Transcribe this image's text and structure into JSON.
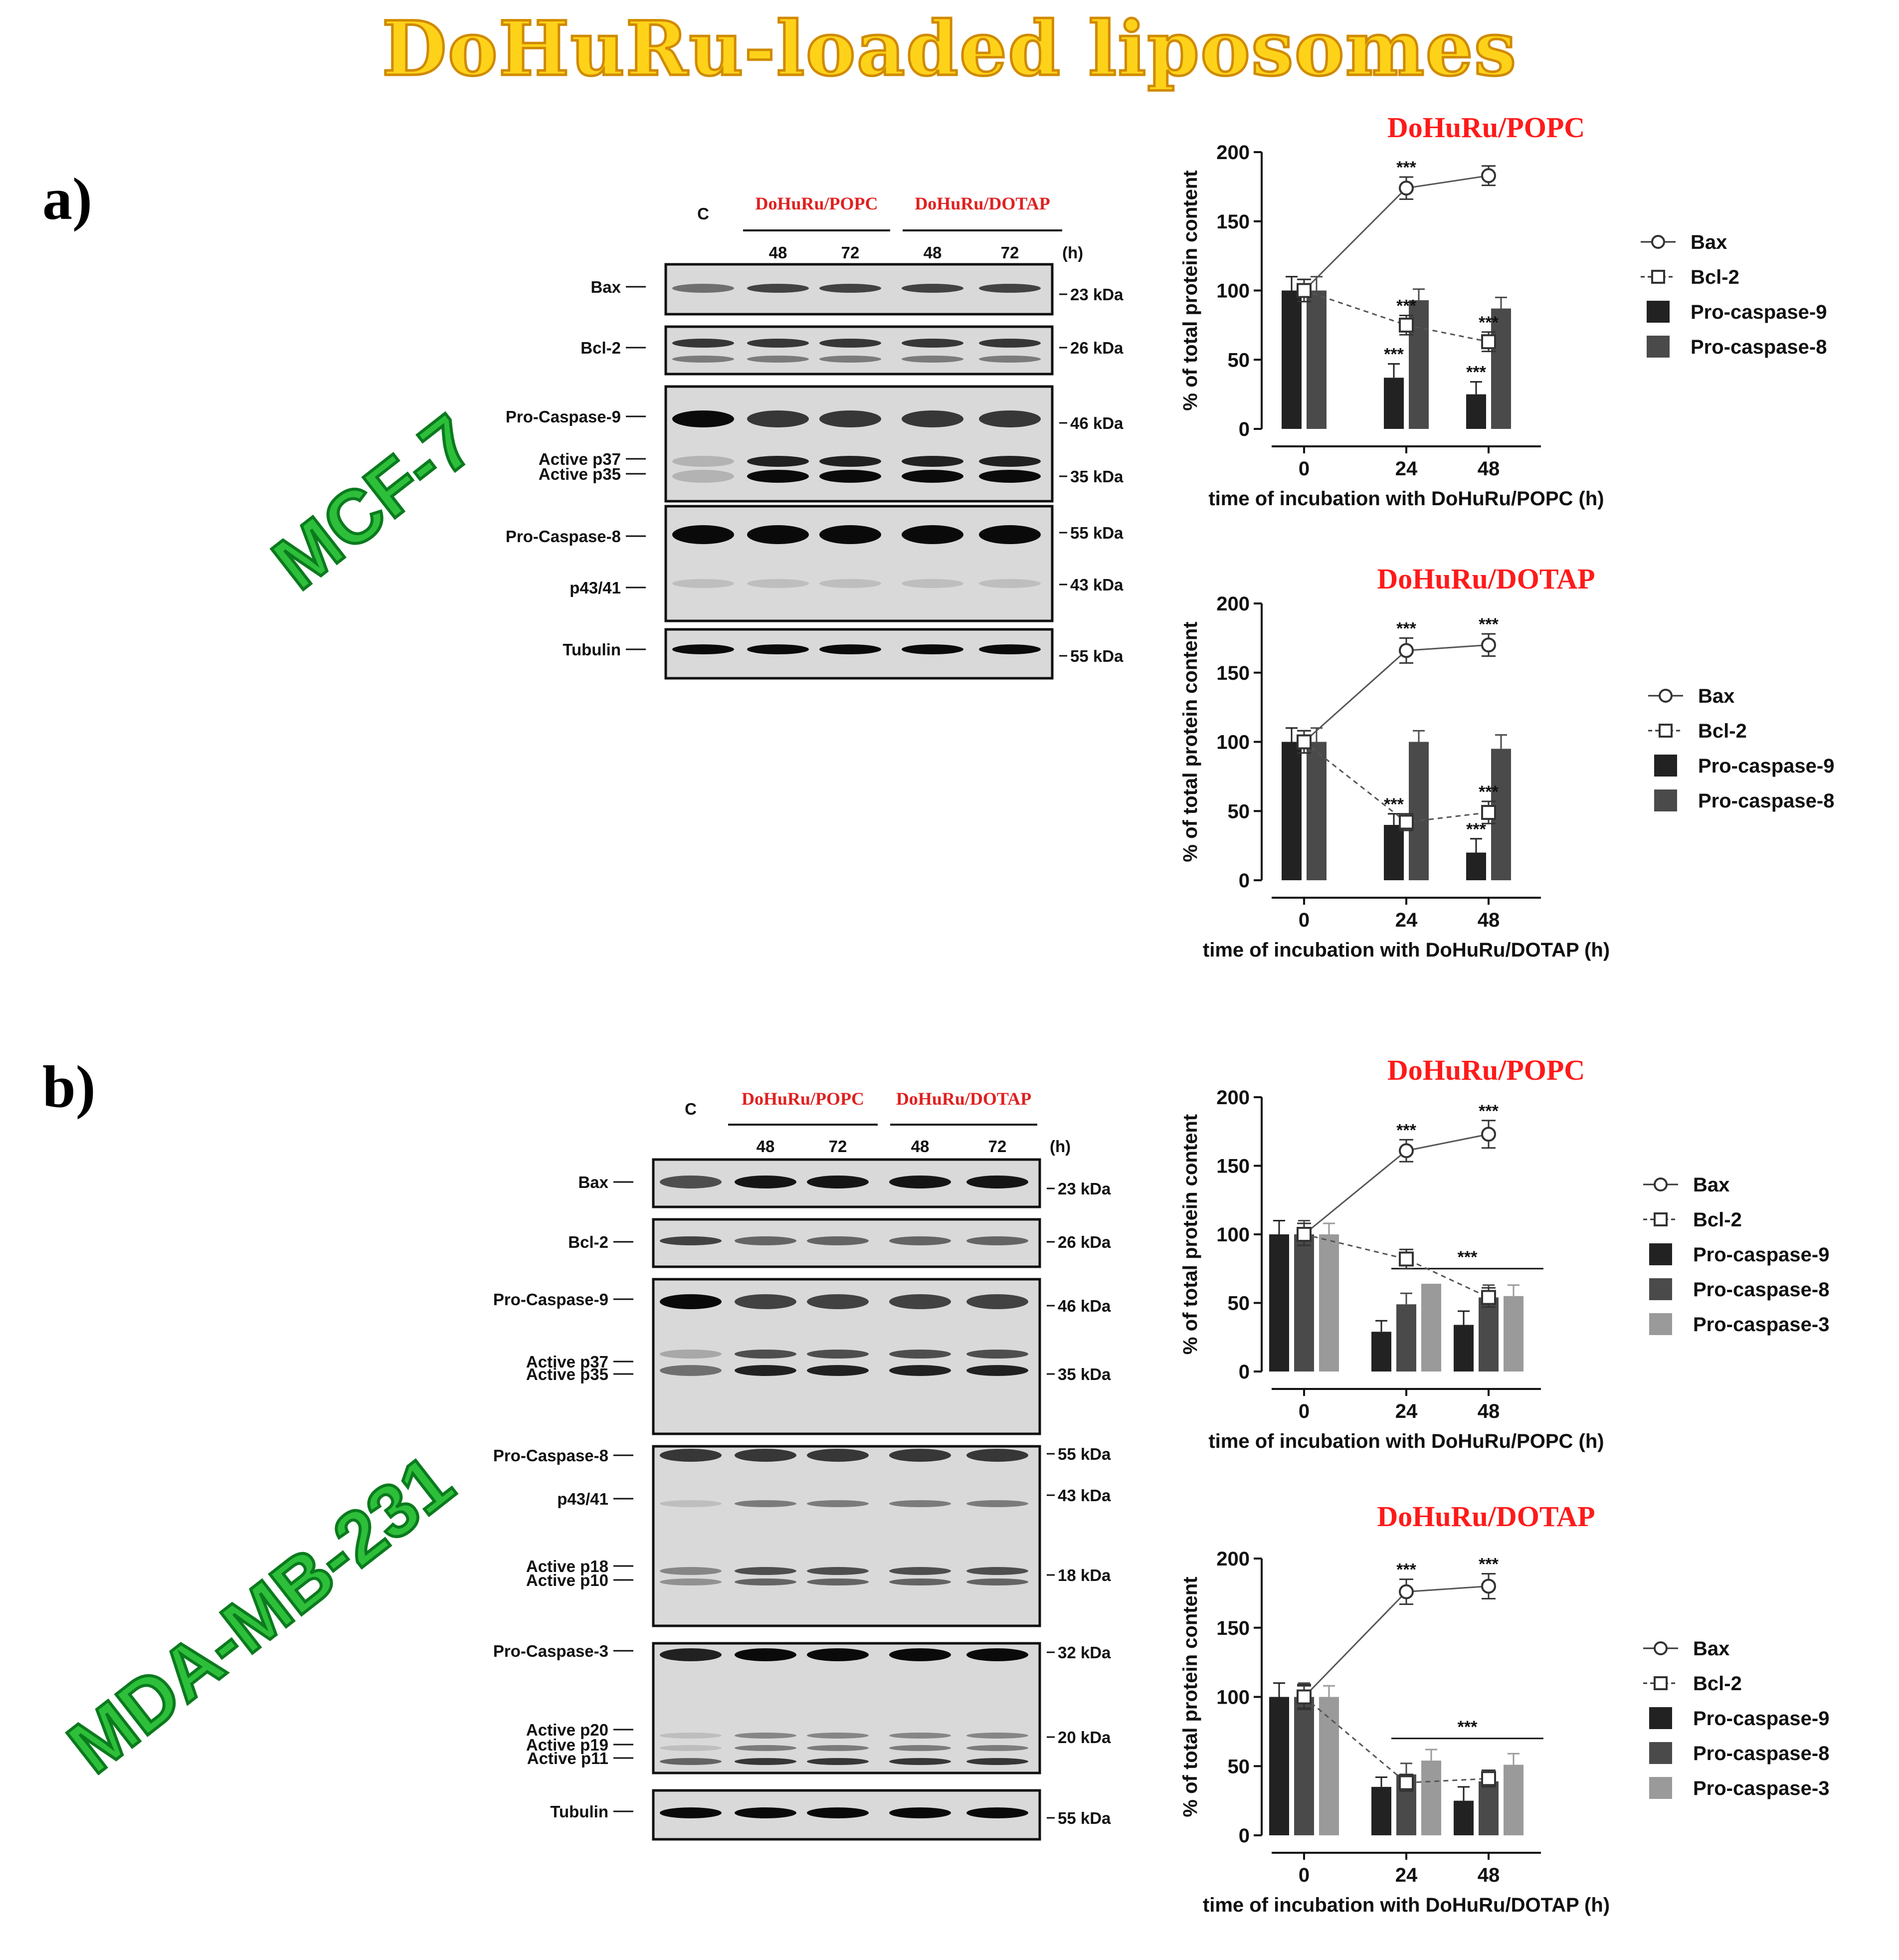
{
  "title": "DoHuRu-loaded liposomes",
  "panels": [
    {
      "label": "a)",
      "cell_line": "MCF-7",
      "blot": {
        "lanes": [
          "C",
          "48",
          "72",
          "48",
          "72"
        ],
        "unit": "(h)",
        "group_labels": [
          "DoHuRu/POPC",
          "DoHuRu/DOTAP"
        ],
        "rows": [
          {
            "labels": [
              "Bax"
            ],
            "kda": [
              "23 kDa"
            ]
          },
          {
            "labels": [
              "Bcl-2"
            ],
            "kda": [
              "26 kDa"
            ]
          },
          {
            "labels": [
              "Pro-Caspase-9",
              "Active  p37",
              "Active  p35"
            ],
            "kda": [
              "46 kDa",
              "35 kDa"
            ]
          },
          {
            "labels": [
              "Pro-Caspase-8",
              "p43/41"
            ],
            "kda": [
              "55 kDa",
              "43 kDa"
            ]
          },
          {
            "labels": [
              "Tubulin"
            ],
            "kda": [
              "55 kDa"
            ]
          }
        ]
      }
    },
    {
      "label": "b)",
      "cell_line": "MDA-MB-231",
      "blot": {
        "lanes": [
          "C",
          "48",
          "72",
          "48",
          "72"
        ],
        "unit": "(h)",
        "group_labels": [
          "DoHuRu/POPC",
          "DoHuRu/DOTAP"
        ],
        "rows": [
          {
            "labels": [
              "Bax"
            ],
            "kda": [
              "23 kDa"
            ]
          },
          {
            "labels": [
              "Bcl-2"
            ],
            "kda": [
              "26 kDa"
            ]
          },
          {
            "labels": [
              "Pro-Caspase-9",
              "Active  p37",
              "Active  p35"
            ],
            "kda": [
              "46 kDa",
              "35 kDa"
            ]
          },
          {
            "labels": [
              "Pro-Caspase-8",
              "p43/41",
              "Active  p18",
              "Active  p10"
            ],
            "kda": [
              "55 kDa",
              "43 kDa",
              "18 kDa"
            ]
          },
          {
            "labels": [
              "Pro-Caspase-3",
              "Active  p20",
              "Active  p19",
              "Active  p11"
            ],
            "kda": [
              "32 kDa",
              "20 kDa"
            ]
          },
          {
            "labels": [
              "Tubulin"
            ],
            "kda": [
              "55 kDa"
            ]
          }
        ]
      }
    }
  ],
  "chart_data": [
    {
      "type": "bar",
      "panel": "a)",
      "title": "DoHuRu/POPC",
      "xlabel": "time of incubation with DoHuRu/POPC (h)",
      "ylabel": "% of total protein content",
      "categories": [
        "0",
        "24",
        "48"
      ],
      "ylim": [
        0,
        200
      ],
      "yticks": [
        0,
        50,
        100,
        150,
        200
      ],
      "bar_series": [
        {
          "name": "Pro-caspase-9",
          "color": "#222222",
          "values": [
            100,
            37,
            25
          ],
          "errors": [
            10,
            10,
            9
          ],
          "stars": [
            "",
            "***",
            "***"
          ]
        },
        {
          "name": "Pro-caspase-8",
          "color": "#4a4a4a",
          "values": [
            100,
            93,
            87
          ],
          "errors": [
            10,
            8,
            8
          ],
          "stars": [
            "",
            "",
            ""
          ]
        }
      ],
      "line_series": [
        {
          "name": "Bax",
          "marker": "circle",
          "dash": false,
          "values": [
            100,
            174,
            183
          ],
          "errors": [
            8,
            8,
            7
          ],
          "stars": [
            "",
            "***",
            ""
          ]
        },
        {
          "name": "Bcl-2",
          "marker": "square",
          "dash": true,
          "values": [
            100,
            75,
            63
          ],
          "errors": [
            8,
            7,
            7
          ],
          "stars": [
            "",
            "***",
            "***"
          ]
        }
      ],
      "bracket_star": "",
      "legend": "right"
    },
    {
      "type": "bar",
      "panel": "a)",
      "title": "DoHuRu/DOTAP",
      "xlabel": "time of incubation with DoHuRu/DOTAP (h)",
      "ylabel": "% of total protein content",
      "categories": [
        "0",
        "24",
        "48"
      ],
      "ylim": [
        0,
        200
      ],
      "yticks": [
        0,
        50,
        100,
        150,
        200
      ],
      "bar_series": [
        {
          "name": "Pro-caspase-9",
          "color": "#222222",
          "values": [
            100,
            40,
            20
          ],
          "errors": [
            10,
            8,
            10
          ],
          "stars": [
            "",
            "***",
            "***"
          ]
        },
        {
          "name": "Pro-caspase-8",
          "color": "#4a4a4a",
          "values": [
            100,
            100,
            95
          ],
          "errors": [
            10,
            8,
            10
          ],
          "stars": [
            "",
            "",
            ""
          ]
        }
      ],
      "line_series": [
        {
          "name": "Bax",
          "marker": "circle",
          "dash": false,
          "values": [
            100,
            166,
            170
          ],
          "errors": [
            8,
            9,
            8
          ],
          "stars": [
            "",
            "***",
            "***"
          ]
        },
        {
          "name": "Bcl-2",
          "marker": "square",
          "dash": true,
          "values": [
            100,
            42,
            49
          ],
          "errors": [
            8,
            6,
            8
          ],
          "stars": [
            "",
            "",
            "***"
          ]
        }
      ],
      "bracket_star": "",
      "legend": "right"
    },
    {
      "type": "bar",
      "panel": "b)",
      "title": "DoHuRu/POPC",
      "xlabel": "time of incubation with DoHuRu/POPC (h)",
      "ylabel": "% of total protein content",
      "categories": [
        "0",
        "24",
        "48"
      ],
      "ylim": [
        0,
        200
      ],
      "yticks": [
        0,
        50,
        100,
        150,
        200
      ],
      "bar_series": [
        {
          "name": "Pro-caspase-9",
          "color": "#222222",
          "values": [
            100,
            29,
            34
          ],
          "errors": [
            10,
            8,
            10
          ],
          "stars": [
            "",
            "",
            ""
          ]
        },
        {
          "name": "Pro-caspase-8",
          "color": "#4a4a4a",
          "values": [
            100,
            49,
            54
          ],
          "errors": [
            10,
            8,
            9
          ],
          "stars": [
            "",
            "",
            ""
          ]
        },
        {
          "name": "Pro-caspase-3",
          "color": "#9a9a9a",
          "values": [
            100,
            64,
            55
          ],
          "errors": [
            8,
            0,
            8
          ],
          "stars": [
            "",
            "",
            ""
          ]
        }
      ],
      "line_series": [
        {
          "name": "Bax",
          "marker": "circle",
          "dash": false,
          "values": [
            100,
            161,
            173
          ],
          "errors": [
            8,
            8,
            10
          ],
          "stars": [
            "",
            "***",
            "***"
          ]
        },
        {
          "name": "Bcl-2",
          "marker": "square",
          "dash": true,
          "values": [
            100,
            82,
            54
          ],
          "errors": [
            8,
            7,
            7
          ],
          "stars": [
            "",
            "",
            ""
          ]
        }
      ],
      "bracket_star": "***",
      "legend": "right"
    },
    {
      "type": "bar",
      "panel": "b)",
      "title": "DoHuRu/DOTAP",
      "xlabel": "time of incubation with DoHuRu/DOTAP (h)",
      "ylabel": "% of total protein content",
      "categories": [
        "0",
        "24",
        "48"
      ],
      "ylim": [
        0,
        200
      ],
      "yticks": [
        0,
        50,
        100,
        150,
        200
      ],
      "bar_series": [
        {
          "name": "Pro-caspase-9",
          "color": "#222222",
          "values": [
            100,
            35,
            25
          ],
          "errors": [
            10,
            7,
            10
          ],
          "stars": [
            "",
            "",
            ""
          ]
        },
        {
          "name": "Pro-caspase-8",
          "color": "#4a4a4a",
          "values": [
            100,
            44,
            39
          ],
          "errors": [
            10,
            8,
            8
          ],
          "stars": [
            "",
            "",
            ""
          ]
        },
        {
          "name": "Pro-caspase-3",
          "color": "#9a9a9a",
          "values": [
            100,
            54,
            51
          ],
          "errors": [
            8,
            8,
            8
          ],
          "stars": [
            "",
            "",
            ""
          ]
        }
      ],
      "line_series": [
        {
          "name": "Bax",
          "marker": "circle",
          "dash": false,
          "values": [
            100,
            176,
            180
          ],
          "errors": [
            9,
            9,
            9
          ],
          "stars": [
            "",
            "***",
            "***"
          ]
        },
        {
          "name": "Bcl-2",
          "marker": "square",
          "dash": true,
          "values": [
            100,
            38,
            41
          ],
          "errors": [
            8,
            6,
            6
          ],
          "stars": [
            "",
            "",
            ""
          ]
        }
      ],
      "bracket_star": "***",
      "legend": "right"
    }
  ]
}
